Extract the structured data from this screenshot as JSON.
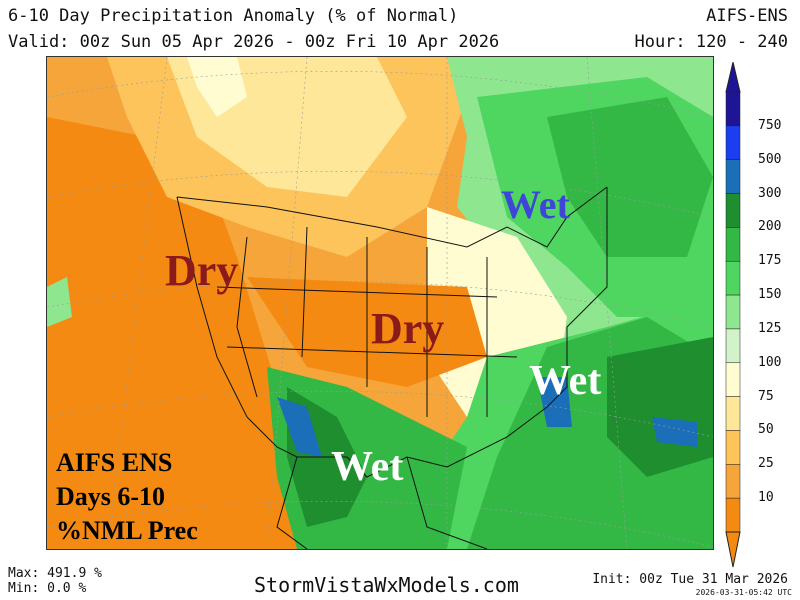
{
  "header": {
    "title": "6-10 Day Precipitation Anomaly (% of Normal)",
    "model": "AIFS-ENS",
    "valid": "Valid: 00z Sun 05 Apr 2026 - 00z Fri 10 Apr 2026",
    "hour": "Hour: 120 - 240"
  },
  "map_labels": {
    "dry_west": "Dry",
    "dry_central": "Dry",
    "wet_northeast": "Wet",
    "wet_southeast": "Wet",
    "wet_south": "Wet"
  },
  "info_box": {
    "line1": "AIFS ENS",
    "line2": "Days 6-10",
    "line3": "%NML Prec"
  },
  "colorbar": {
    "ticks": [
      "750",
      "500",
      "300",
      "200",
      "175",
      "150",
      "125",
      "100",
      "75",
      "50",
      "25",
      "10"
    ],
    "colors": [
      "#1e1496",
      "#1b3ff0",
      "#1a6fb8",
      "#1e8e2e",
      "#34b845",
      "#4fd660",
      "#8ee68f",
      "#d2f2c9",
      "#fffcd2",
      "#ffe79a",
      "#fcc45a",
      "#f5a53a",
      "#f58a12"
    ]
  },
  "footer": {
    "max": "Max: 491.9 %",
    "min": "Min: 0.0 %",
    "site": "StormVistaWxModels.com",
    "init": "Init: 00z Tue 31 Mar 2026",
    "stamp": "2026-03-31-05:42 UTC"
  }
}
